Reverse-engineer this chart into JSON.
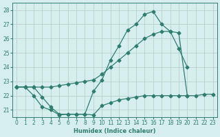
{
  "xlabel": "Humidex (Indice chaleur)",
  "x": [
    0,
    1,
    2,
    3,
    4,
    5,
    6,
    7,
    8,
    9,
    10,
    11,
    12,
    13,
    14,
    15,
    16,
    17,
    18,
    19,
    20,
    21,
    22,
    23
  ],
  "line_max": [
    22.6,
    22.6,
    22.6,
    21.9,
    21.2,
    20.7,
    20.7,
    20.7,
    20.7,
    22.3,
    23.1,
    24.5,
    25.5,
    26.6,
    27.0,
    27.7,
    27.9,
    27.0,
    26.5,
    25.3,
    24.0,
    null,
    null,
    null
  ],
  "line_mean": [
    22.6,
    22.6,
    22.6,
    22.6,
    22.6,
    22.7,
    22.8,
    22.9,
    23.0,
    23.1,
    23.5,
    24.0,
    24.5,
    25.0,
    25.5,
    26.0,
    26.3,
    26.5,
    26.5,
    26.4,
    22.0,
    null,
    null,
    null
  ],
  "line_min": [
    22.6,
    22.6,
    22.0,
    21.2,
    21.0,
    20.65,
    20.7,
    20.7,
    20.7,
    20.65,
    21.3,
    21.5,
    21.7,
    21.8,
    21.9,
    22.0,
    22.0,
    22.0,
    22.0,
    22.0,
    22.0,
    22.0,
    22.1,
    22.1
  ],
  "line_color": "#2e7d6e",
  "bg_color": "#d6eeed",
  "grid_color": "#b0cbc9",
  "ylim": [
    20.5,
    28.5
  ],
  "xlim": [
    -0.5,
    23.5
  ],
  "yticks": [
    21,
    22,
    23,
    24,
    25,
    26,
    27,
    28
  ],
  "xticks": [
    0,
    1,
    2,
    3,
    4,
    5,
    6,
    7,
    8,
    9,
    10,
    11,
    12,
    13,
    14,
    15,
    16,
    17,
    18,
    19,
    20,
    21,
    22,
    23
  ]
}
